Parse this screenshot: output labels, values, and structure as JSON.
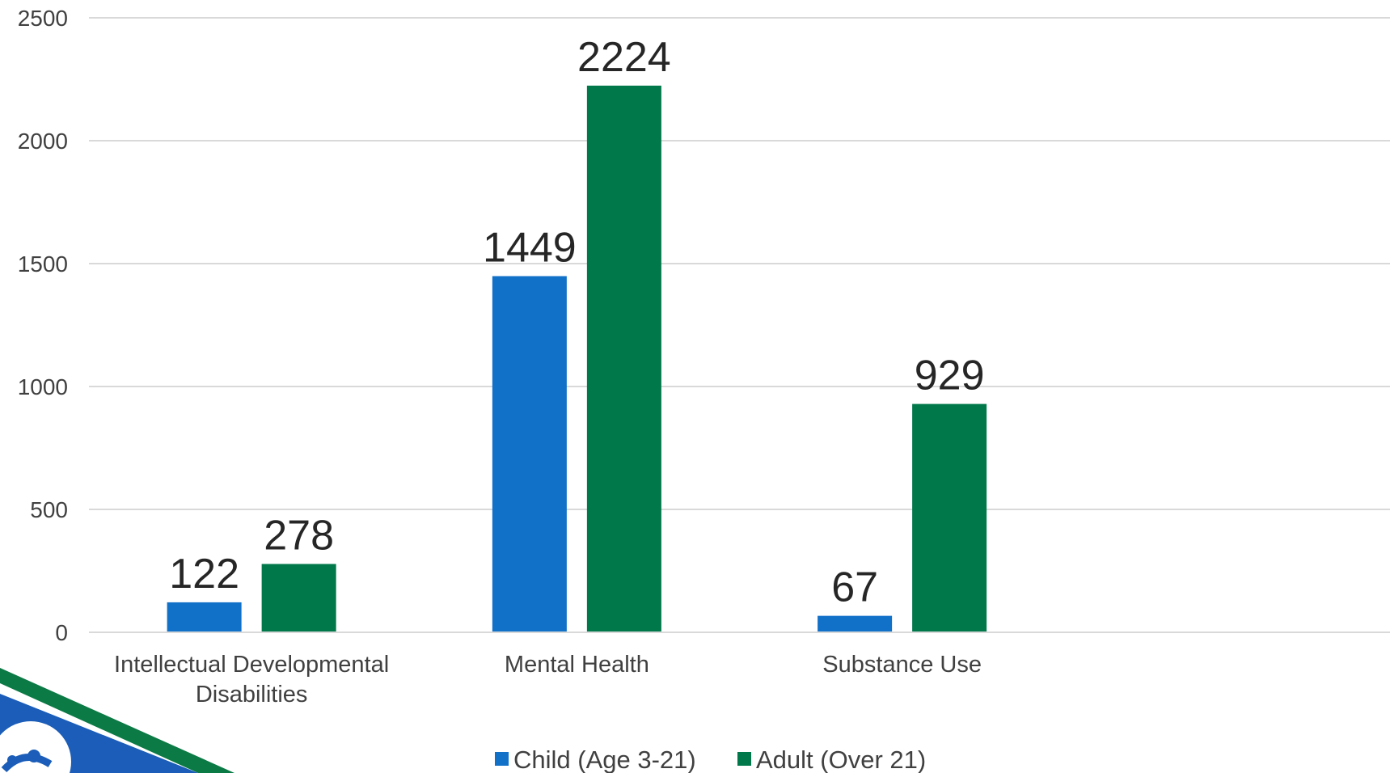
{
  "chart_data": {
    "type": "bar",
    "categories": [
      "Intellectual Developmental Disabilities",
      "Mental Health",
      "Substance Use",
      ""
    ],
    "category_lines": [
      [
        "Intellectual Developmental",
        "Disabilities"
      ],
      [
        "Mental Health"
      ],
      [
        "Substance Use"
      ],
      []
    ],
    "series": [
      {
        "name": "Child (Age 3-21)",
        "values": [
          122,
          1449,
          67,
          null
        ],
        "color": "#1170C8"
      },
      {
        "name": "Adult (Over 21)",
        "values": [
          278,
          2224,
          929,
          null
        ],
        "color": "#00784A"
      }
    ],
    "ylim": [
      0,
      2500
    ],
    "yticks": [
      0,
      500,
      1000,
      1500,
      2000,
      2500
    ],
    "data_labels": true,
    "grid": true,
    "legend": "bottom-center"
  },
  "decor": {
    "logo_icon": "organization-logo-icon",
    "colors": {
      "logo_blue": "#1B5DB8",
      "logo_green": "#0B7A45"
    }
  }
}
